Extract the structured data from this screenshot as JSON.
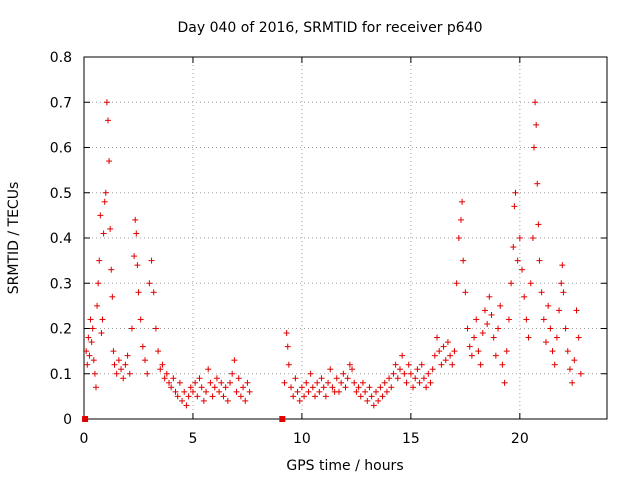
{
  "chart_data": {
    "type": "scatter",
    "title": "Day 040 of 2016, SRMTID for receiver p640",
    "xlabel": "GPS time / hours",
    "ylabel": "SRMTID / TECUs",
    "xlim": [
      0,
      24
    ],
    "ylim": [
      0,
      0.8
    ],
    "xticks": [
      0,
      5,
      10,
      15,
      20
    ],
    "xtick_labels": [
      "0",
      "5",
      "10",
      "15",
      "20"
    ],
    "yticks": [
      0,
      0.1,
      0.2,
      0.3,
      0.4,
      0.5,
      0.6,
      0.7,
      0.8
    ],
    "ytick_labels": [
      "0",
      "0.1",
      "0.2",
      "0.3",
      "0.4",
      "0.5",
      "0.6",
      "0.7",
      "0.8"
    ],
    "grid": true,
    "legend": "none",
    "marker": "plus",
    "series_color": "#e00000",
    "series": [
      {
        "name": "SRMTID",
        "points": [
          [
            0.05,
            0.0
          ],
          [
            0.1,
            0.15
          ],
          [
            0.15,
            0.12
          ],
          [
            0.2,
            0.18
          ],
          [
            0.25,
            0.14
          ],
          [
            0.3,
            0.22
          ],
          [
            0.35,
            0.17
          ],
          [
            0.4,
            0.2
          ],
          [
            0.45,
            0.13
          ],
          [
            0.5,
            0.1
          ],
          [
            0.55,
            0.07
          ],
          [
            0.6,
            0.25
          ],
          [
            0.65,
            0.3
          ],
          [
            0.7,
            0.35
          ],
          [
            0.75,
            0.45
          ],
          [
            0.8,
            0.19
          ],
          [
            0.85,
            0.22
          ],
          [
            0.9,
            0.41
          ],
          [
            0.95,
            0.48
          ],
          [
            1.0,
            0.5
          ],
          [
            1.05,
            0.7
          ],
          [
            1.1,
            0.66
          ],
          [
            1.15,
            0.57
          ],
          [
            1.2,
            0.42
          ],
          [
            1.25,
            0.33
          ],
          [
            1.3,
            0.27
          ],
          [
            1.35,
            0.15
          ],
          [
            1.4,
            0.12
          ],
          [
            1.5,
            0.1
          ],
          [
            1.6,
            0.13
          ],
          [
            1.7,
            0.11
          ],
          [
            1.8,
            0.09
          ],
          [
            1.9,
            0.12
          ],
          [
            2.0,
            0.14
          ],
          [
            2.1,
            0.1
          ],
          [
            2.2,
            0.2
          ],
          [
            2.3,
            0.36
          ],
          [
            2.35,
            0.44
          ],
          [
            2.4,
            0.41
          ],
          [
            2.45,
            0.34
          ],
          [
            2.5,
            0.28
          ],
          [
            2.6,
            0.22
          ],
          [
            2.7,
            0.16
          ],
          [
            2.8,
            0.13
          ],
          [
            2.9,
            0.1
          ],
          [
            3.0,
            0.3
          ],
          [
            3.1,
            0.35
          ],
          [
            3.2,
            0.28
          ],
          [
            3.3,
            0.2
          ],
          [
            3.4,
            0.15
          ],
          [
            3.5,
            0.11
          ],
          [
            3.6,
            0.12
          ],
          [
            3.7,
            0.09
          ],
          [
            3.8,
            0.1
          ],
          [
            3.9,
            0.08
          ],
          [
            4.0,
            0.07
          ],
          [
            4.1,
            0.09
          ],
          [
            4.2,
            0.06
          ],
          [
            4.3,
            0.05
          ],
          [
            4.4,
            0.08
          ],
          [
            4.5,
            0.04
          ],
          [
            4.6,
            0.06
          ],
          [
            4.7,
            0.03
          ],
          [
            4.8,
            0.05
          ],
          [
            4.9,
            0.07
          ],
          [
            5.0,
            0.06
          ],
          [
            5.1,
            0.08
          ],
          [
            5.2,
            0.05
          ],
          [
            5.3,
            0.09
          ],
          [
            5.4,
            0.07
          ],
          [
            5.5,
            0.04
          ],
          [
            5.6,
            0.06
          ],
          [
            5.7,
            0.11
          ],
          [
            5.8,
            0.08
          ],
          [
            5.9,
            0.05
          ],
          [
            6.0,
            0.07
          ],
          [
            6.1,
            0.09
          ],
          [
            6.2,
            0.06
          ],
          [
            6.3,
            0.08
          ],
          [
            6.4,
            0.05
          ],
          [
            6.5,
            0.07
          ],
          [
            6.6,
            0.04
          ],
          [
            6.7,
            0.08
          ],
          [
            6.8,
            0.1
          ],
          [
            6.9,
            0.13
          ],
          [
            7.0,
            0.06
          ],
          [
            7.1,
            0.09
          ],
          [
            7.2,
            0.05
          ],
          [
            7.3,
            0.07
          ],
          [
            7.4,
            0.04
          ],
          [
            7.5,
            0.08
          ],
          [
            7.6,
            0.06
          ],
          [
            9.1,
            0.0
          ],
          [
            9.2,
            0.08
          ],
          [
            9.3,
            0.19
          ],
          [
            9.35,
            0.16
          ],
          [
            9.4,
            0.12
          ],
          [
            9.5,
            0.07
          ],
          [
            9.6,
            0.05
          ],
          [
            9.7,
            0.09
          ],
          [
            9.8,
            0.06
          ],
          [
            9.9,
            0.04
          ],
          [
            10.0,
            0.07
          ],
          [
            10.1,
            0.05
          ],
          [
            10.2,
            0.08
          ],
          [
            10.3,
            0.06
          ],
          [
            10.4,
            0.1
          ],
          [
            10.5,
            0.07
          ],
          [
            10.6,
            0.05
          ],
          [
            10.7,
            0.08
          ],
          [
            10.8,
            0.06
          ],
          [
            10.9,
            0.09
          ],
          [
            11.0,
            0.07
          ],
          [
            11.1,
            0.05
          ],
          [
            11.2,
            0.08
          ],
          [
            11.3,
            0.11
          ],
          [
            11.4,
            0.07
          ],
          [
            11.5,
            0.06
          ],
          [
            11.6,
            0.09
          ],
          [
            11.7,
            0.06
          ],
          [
            11.8,
            0.08
          ],
          [
            11.9,
            0.1
          ],
          [
            12.0,
            0.07
          ],
          [
            12.1,
            0.09
          ],
          [
            12.2,
            0.12
          ],
          [
            12.3,
            0.11
          ],
          [
            12.4,
            0.08
          ],
          [
            12.5,
            0.06
          ],
          [
            12.6,
            0.07
          ],
          [
            12.7,
            0.05
          ],
          [
            12.8,
            0.08
          ],
          [
            12.9,
            0.06
          ],
          [
            13.0,
            0.04
          ],
          [
            13.1,
            0.07
          ],
          [
            13.2,
            0.05
          ],
          [
            13.3,
            0.03
          ],
          [
            13.4,
            0.06
          ],
          [
            13.5,
            0.04
          ],
          [
            13.6,
            0.07
          ],
          [
            13.7,
            0.05
          ],
          [
            13.8,
            0.08
          ],
          [
            13.9,
            0.06
          ],
          [
            14.0,
            0.09
          ],
          [
            14.1,
            0.07
          ],
          [
            14.2,
            0.1
          ],
          [
            14.3,
            0.12
          ],
          [
            14.4,
            0.09
          ],
          [
            14.5,
            0.11
          ],
          [
            14.6,
            0.14
          ],
          [
            14.7,
            0.1
          ],
          [
            14.8,
            0.08
          ],
          [
            14.9,
            0.12
          ],
          [
            15.0,
            0.1
          ],
          [
            15.1,
            0.07
          ],
          [
            15.2,
            0.09
          ],
          [
            15.3,
            0.11
          ],
          [
            15.4,
            0.08
          ],
          [
            15.5,
            0.12
          ],
          [
            15.6,
            0.09
          ],
          [
            15.7,
            0.07
          ],
          [
            15.8,
            0.1
          ],
          [
            15.9,
            0.08
          ],
          [
            16.0,
            0.11
          ],
          [
            16.1,
            0.14
          ],
          [
            16.2,
            0.18
          ],
          [
            16.3,
            0.15
          ],
          [
            16.4,
            0.12
          ],
          [
            16.5,
            0.16
          ],
          [
            16.6,
            0.13
          ],
          [
            16.7,
            0.17
          ],
          [
            16.8,
            0.14
          ],
          [
            16.9,
            0.12
          ],
          [
            17.0,
            0.15
          ],
          [
            17.1,
            0.3
          ],
          [
            17.2,
            0.4
          ],
          [
            17.3,
            0.44
          ],
          [
            17.35,
            0.48
          ],
          [
            17.4,
            0.35
          ],
          [
            17.5,
            0.28
          ],
          [
            17.6,
            0.2
          ],
          [
            17.7,
            0.16
          ],
          [
            17.8,
            0.14
          ],
          [
            17.9,
            0.18
          ],
          [
            18.0,
            0.22
          ],
          [
            18.1,
            0.15
          ],
          [
            18.2,
            0.12
          ],
          [
            18.3,
            0.19
          ],
          [
            18.4,
            0.24
          ],
          [
            18.5,
            0.21
          ],
          [
            18.6,
            0.27
          ],
          [
            18.7,
            0.23
          ],
          [
            18.8,
            0.18
          ],
          [
            18.9,
            0.14
          ],
          [
            19.0,
            0.2
          ],
          [
            19.1,
            0.25
          ],
          [
            19.2,
            0.12
          ],
          [
            19.3,
            0.08
          ],
          [
            19.4,
            0.15
          ],
          [
            19.5,
            0.22
          ],
          [
            19.6,
            0.3
          ],
          [
            19.7,
            0.38
          ],
          [
            19.75,
            0.47
          ],
          [
            19.8,
            0.5
          ],
          [
            19.9,
            0.35
          ],
          [
            20.0,
            0.4
          ],
          [
            20.1,
            0.33
          ],
          [
            20.2,
            0.27
          ],
          [
            20.3,
            0.22
          ],
          [
            20.4,
            0.18
          ],
          [
            20.5,
            0.3
          ],
          [
            20.6,
            0.4
          ],
          [
            20.65,
            0.6
          ],
          [
            20.7,
            0.7
          ],
          [
            20.75,
            0.65
          ],
          [
            20.8,
            0.52
          ],
          [
            20.85,
            0.43
          ],
          [
            20.9,
            0.35
          ],
          [
            21.0,
            0.28
          ],
          [
            21.1,
            0.22
          ],
          [
            21.2,
            0.17
          ],
          [
            21.3,
            0.25
          ],
          [
            21.4,
            0.2
          ],
          [
            21.5,
            0.15
          ],
          [
            21.6,
            0.12
          ],
          [
            21.7,
            0.18
          ],
          [
            21.8,
            0.24
          ],
          [
            21.9,
            0.3
          ],
          [
            21.95,
            0.34
          ],
          [
            22.0,
            0.28
          ],
          [
            22.1,
            0.2
          ],
          [
            22.2,
            0.15
          ],
          [
            22.3,
            0.11
          ],
          [
            22.4,
            0.08
          ],
          [
            22.5,
            0.13
          ],
          [
            22.6,
            0.24
          ],
          [
            22.7,
            0.18
          ],
          [
            22.8,
            0.1
          ]
        ]
      }
    ],
    "markers_at_zero": [
      0.05,
      9.1
    ]
  }
}
